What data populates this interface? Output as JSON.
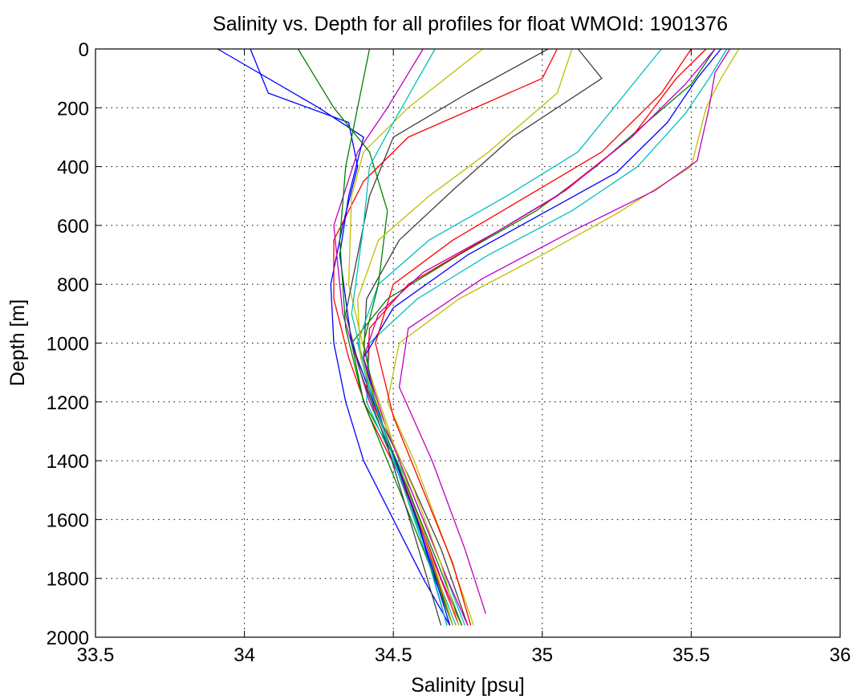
{
  "chart_data": {
    "type": "line",
    "title": "Salinity vs. Depth for all profiles for float WMOId: 1901376",
    "xlabel": "Salinity [psu]",
    "ylabel": "Depth [m]",
    "xlim": [
      33.5,
      36
    ],
    "ylim": [
      0,
      2000
    ],
    "y_reversed": true,
    "xticks": [
      "33.5",
      "34",
      "34.5",
      "35",
      "35.5",
      "36"
    ],
    "yticks": [
      "0",
      "200",
      "400",
      "600",
      "800",
      "1000",
      "1200",
      "1400",
      "1600",
      "1800",
      "2000"
    ],
    "grid": true,
    "grid_style": "dotted",
    "legend": "none",
    "colors": [
      "#0000ff",
      "#008000",
      "#ff0000",
      "#00bfbf",
      "#bf00bf",
      "#bfbf00",
      "#404040"
    ],
    "series": [
      {
        "x": [
          34.02,
          34.08,
          34.35,
          34.38,
          34.33,
          34.29,
          34.3,
          34.34,
          34.4,
          34.5,
          34.6,
          34.69
        ],
        "y": [
          0,
          150,
          250,
          400,
          600,
          800,
          1000,
          1200,
          1400,
          1600,
          1800,
          1960
        ]
      },
      {
        "x": [
          35.58,
          35.5,
          35.35,
          35.18,
          34.98,
          34.72,
          34.48,
          34.36,
          34.4,
          34.51,
          34.61,
          34.7
        ],
        "y": [
          0,
          120,
          250,
          400,
          550,
          700,
          850,
          1000,
          1200,
          1400,
          1700,
          1960
        ]
      },
      {
        "x": [
          35.05,
          35.0,
          34.55,
          34.4,
          34.3,
          34.3,
          34.35,
          34.42,
          34.52,
          34.62,
          34.72
        ],
        "y": [
          0,
          100,
          300,
          450,
          650,
          850,
          1050,
          1250,
          1450,
          1700,
          1960
        ]
      },
      {
        "x": [
          35.62,
          35.56,
          35.48,
          35.32,
          35.1,
          34.82,
          34.58,
          34.42,
          34.41,
          34.5,
          34.61,
          34.71
        ],
        "y": [
          0,
          100,
          220,
          400,
          550,
          700,
          850,
          1000,
          1200,
          1400,
          1700,
          1960
        ]
      },
      {
        "x": [
          34.6,
          34.48,
          34.38,
          34.3,
          34.33,
          34.42,
          34.55,
          34.66,
          34.73
        ],
        "y": [
          0,
          200,
          350,
          600,
          900,
          1200,
          1500,
          1800,
          1960
        ]
      },
      {
        "x": [
          35.66,
          35.6,
          35.55,
          35.5,
          35.25,
          35.0,
          34.72,
          34.52,
          34.48,
          34.57,
          34.68,
          34.77
        ],
        "y": [
          0,
          100,
          200,
          400,
          560,
          700,
          850,
          1000,
          1200,
          1400,
          1700,
          1960
        ]
      },
      {
        "x": [
          35.12,
          35.2,
          34.9,
          34.7,
          34.52,
          34.41,
          34.4,
          34.45,
          34.55,
          34.66,
          34.75
        ],
        "y": [
          0,
          100,
          300,
          480,
          650,
          850,
          1050,
          1250,
          1450,
          1700,
          1960
        ]
      },
      {
        "x": [
          33.91,
          34.25,
          34.4,
          34.35,
          34.32,
          34.36,
          34.47,
          34.58,
          34.68
        ],
        "y": [
          0,
          200,
          300,
          500,
          700,
          1000,
          1300,
          1600,
          1960
        ]
      },
      {
        "x": [
          34.42,
          34.37,
          34.34,
          34.32,
          34.34,
          34.4,
          34.5,
          34.6,
          34.7
        ],
        "y": [
          0,
          250,
          400,
          650,
          950,
          1200,
          1450,
          1700,
          1960
        ]
      },
      {
        "x": [
          35.55,
          35.45,
          35.3,
          35.05,
          34.8,
          34.55,
          34.42,
          34.41,
          34.49,
          34.6,
          34.7
        ],
        "y": [
          0,
          100,
          300,
          500,
          650,
          800,
          950,
          1150,
          1350,
          1650,
          1960
        ]
      },
      {
        "x": [
          35.4,
          35.28,
          35.12,
          34.88,
          34.62,
          34.45,
          34.38,
          34.44,
          34.56,
          34.66,
          34.74
        ],
        "y": [
          0,
          150,
          350,
          500,
          650,
          800,
          1000,
          1250,
          1500,
          1750,
          1960
        ]
      },
      {
        "x": [
          35.63,
          35.58,
          35.56,
          35.52,
          35.38,
          35.1,
          34.8,
          34.55,
          34.52,
          34.63,
          34.74,
          34.81
        ],
        "y": [
          0,
          80,
          200,
          380,
          480,
          620,
          780,
          950,
          1150,
          1400,
          1700,
          1920
        ]
      },
      {
        "x": [
          34.8,
          34.55,
          34.4,
          34.36,
          34.35,
          34.42,
          34.52,
          34.62,
          34.7
        ],
        "y": [
          0,
          200,
          350,
          500,
          800,
          1100,
          1400,
          1700,
          1960
        ]
      },
      {
        "x": [
          35.02,
          34.75,
          34.5,
          34.42,
          34.38,
          34.34,
          34.39,
          34.48,
          34.57,
          34.66
        ],
        "y": [
          0,
          150,
          300,
          500,
          700,
          900,
          1100,
          1350,
          1650,
          1960
        ]
      },
      {
        "x": [
          35.6,
          35.52,
          35.42,
          35.25,
          35.0,
          34.75,
          34.5,
          34.4,
          34.47,
          34.58,
          34.69
        ],
        "y": [
          0,
          100,
          250,
          420,
          560,
          700,
          880,
          1050,
          1300,
          1600,
          1960
        ]
      },
      {
        "x": [
          34.18,
          34.3,
          34.42,
          34.48,
          34.45,
          34.4,
          34.45,
          34.55,
          34.65,
          34.73
        ],
        "y": [
          0,
          200,
          350,
          550,
          800,
          1000,
          1250,
          1500,
          1750,
          1960
        ]
      },
      {
        "x": [
          35.5,
          35.4,
          35.2,
          34.95,
          34.7,
          34.5,
          34.44,
          34.5,
          34.6,
          34.7,
          34.76
        ],
        "y": [
          0,
          150,
          350,
          500,
          650,
          800,
          1000,
          1250,
          1500,
          1750,
          1960
        ]
      },
      {
        "x": [
          34.64,
          34.5,
          34.42,
          34.4,
          34.36,
          34.42,
          34.52,
          34.62,
          34.68
        ],
        "y": [
          0,
          250,
          400,
          600,
          900,
          1150,
          1450,
          1750,
          1960
        ]
      },
      {
        "x": [
          35.58,
          35.48,
          35.3,
          35.08,
          34.85,
          34.6,
          34.45,
          34.4,
          34.48,
          34.58,
          34.68,
          34.75
        ],
        "y": [
          0,
          120,
          300,
          480,
          620,
          760,
          900,
          1050,
          1300,
          1550,
          1800,
          1960
        ]
      },
      {
        "x": [
          35.1,
          35.05,
          34.82,
          34.62,
          34.45,
          34.38,
          34.39,
          34.46,
          34.57,
          34.66,
          34.72
        ],
        "y": [
          0,
          150,
          350,
          500,
          650,
          850,
          1050,
          1250,
          1500,
          1750,
          1960
        ]
      }
    ]
  }
}
